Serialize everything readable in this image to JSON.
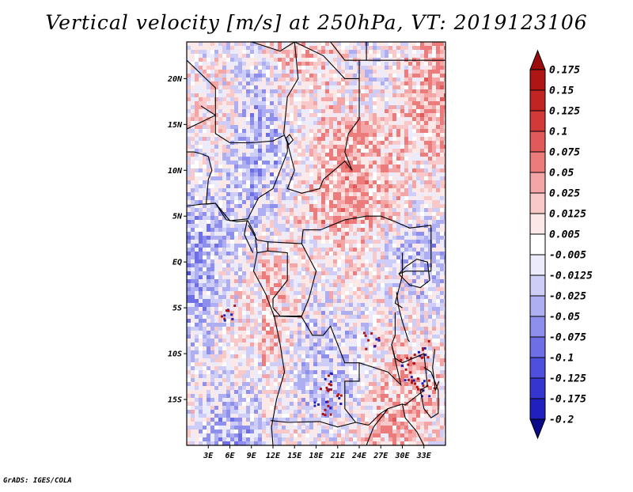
{
  "title": "Vertical velocity [m/s] at 250hPa, VT: 2019123106",
  "credit": "GrADS: IGES/COLA",
  "colors": {
    "positive": [
      "#fde8e8",
      "#f9c9c9",
      "#f4a5a5",
      "#ec7b7b",
      "#e05a5a",
      "#d23a3a",
      "#c22424",
      "#b01515",
      "#9a0c0c"
    ],
    "negative": [
      "#ebebfc",
      "#cdcdf7",
      "#aeaef2",
      "#8e8eec",
      "#6e6ee6",
      "#4f4fdd",
      "#3535d0",
      "#2020bf",
      "#1212a8",
      "#0a0a8a"
    ],
    "border": "#000000"
  },
  "chart_data": {
    "type": "heatmap",
    "title": "Vertical velocity [m/s] at 250hPa, VT: 2019123106",
    "variable": "Vertical velocity",
    "units": "m/s",
    "level": "250hPa",
    "valid_time": "2019123106",
    "lon_range": [
      0,
      36
    ],
    "lat_range": [
      -20,
      24
    ],
    "lon_ticks": [
      3,
      6,
      9,
      12,
      15,
      18,
      21,
      24,
      27,
      30,
      33
    ],
    "lon_tick_labels": [
      "3E",
      "6E",
      "9E",
      "12E",
      "15E",
      "18E",
      "21E",
      "24E",
      "27E",
      "30E",
      "33E"
    ],
    "lat_ticks": [
      20,
      15,
      10,
      5,
      0,
      -5,
      -10,
      -15
    ],
    "lat_tick_labels": [
      "20N",
      "15N",
      "10N",
      "5N",
      "EQ",
      "5S",
      "10S",
      "15S"
    ],
    "colorbar_levels": [
      0.175,
      0.15,
      0.125,
      0.1,
      0.075,
      0.05,
      0.025,
      0.0125,
      0.005,
      -0.005,
      -0.0125,
      -0.025,
      -0.05,
      -0.075,
      -0.1,
      -0.125,
      -0.175,
      -0.2
    ],
    "colorbar_labels": [
      "0.175",
      "0.15",
      "0.125",
      "0.1",
      "0.075",
      "0.05",
      "0.025",
      "0.0125",
      "0.005",
      "-0.005",
      "-0.0125",
      "-0.025",
      "-0.05",
      "-0.075",
      "-0.1",
      "-0.125",
      "-0.175",
      "-0.2"
    ]
  }
}
